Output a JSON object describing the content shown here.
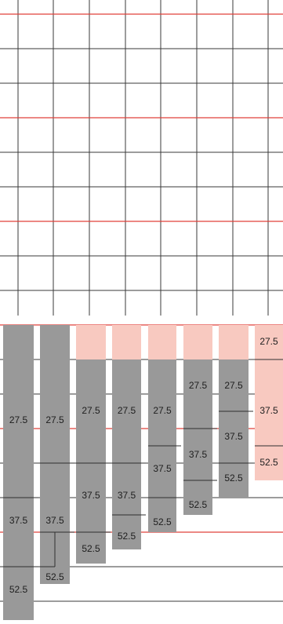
{
  "columns": [
    {
      "name": "col-1",
      "labels": [
        {
          "key": "a",
          "text": "27.5"
        },
        {
          "key": "b",
          "text": "37.5"
        },
        {
          "key": "c",
          "text": "52.5"
        }
      ]
    },
    {
      "name": "col-2",
      "labels": [
        {
          "key": "a",
          "text": "27.5"
        },
        {
          "key": "b",
          "text": "37.5"
        },
        {
          "key": "c",
          "text": "52.5"
        }
      ]
    },
    {
      "name": "col-3",
      "labels": [
        {
          "key": "a",
          "text": "27.5"
        },
        {
          "key": "b",
          "text": "37.5"
        },
        {
          "key": "c",
          "text": "52.5"
        }
      ]
    },
    {
      "name": "col-4",
      "labels": [
        {
          "key": "a",
          "text": "27.5"
        },
        {
          "key": "b",
          "text": "37.5"
        },
        {
          "key": "c",
          "text": "52.5"
        }
      ]
    },
    {
      "name": "col-5",
      "labels": [
        {
          "key": "a",
          "text": "27.5"
        },
        {
          "key": "b",
          "text": "37.5"
        },
        {
          "key": "c",
          "text": "52.5"
        }
      ]
    },
    {
      "name": "col-6",
      "labels": [
        {
          "key": "a",
          "text": "27.5"
        },
        {
          "key": "b",
          "text": "37.5"
        },
        {
          "key": "c",
          "text": "52.5"
        }
      ]
    },
    {
      "name": "col-7",
      "labels": [
        {
          "key": "a",
          "text": "27.5"
        },
        {
          "key": "b",
          "text": "37.5"
        },
        {
          "key": "c",
          "text": "52.5"
        }
      ]
    },
    {
      "name": "col-8",
      "labels": [
        {
          "key": "a",
          "text": "27.5"
        },
        {
          "key": "b",
          "text": "37.5"
        },
        {
          "key": "c",
          "text": "52.5"
        }
      ]
    }
  ],
  "colors": {
    "grid": "#3a3a3a",
    "accent_line": "#e0403a",
    "bar": "#999999",
    "highlight": "#f8c9c0"
  }
}
